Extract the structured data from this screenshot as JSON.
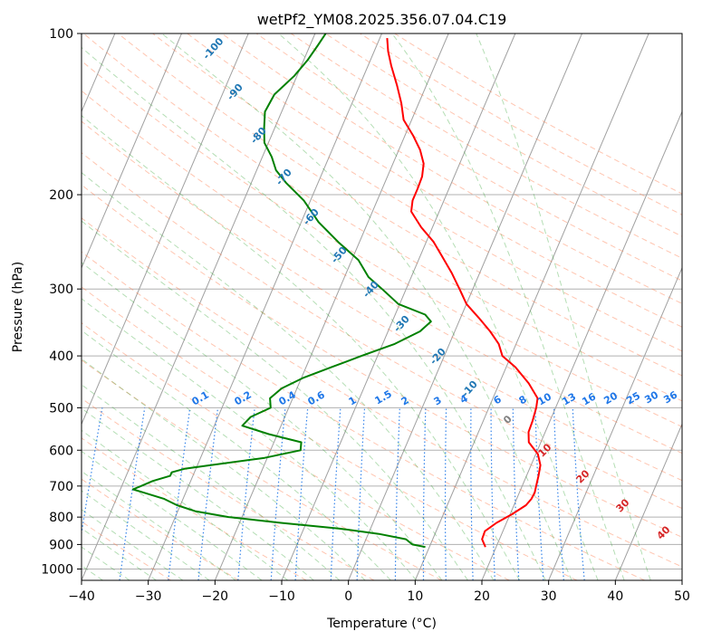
{
  "chart_data": {
    "type": "skew-t",
    "title": "wetPf2_YM08.2025.356.07.04.C19",
    "xlabel": "Temperature (°C)",
    "ylabel": "Pressure (hPa)",
    "xlim": [
      -40,
      50
    ],
    "ylim": [
      1050,
      100
    ],
    "x_ticks": [
      "−40",
      "−30",
      "−20",
      "−10",
      "0",
      "10",
      "20",
      "30",
      "40",
      "50"
    ],
    "x_tick_values": [
      -40,
      -30,
      -20,
      -10,
      0,
      10,
      20,
      30,
      40,
      50
    ],
    "y_ticks": [
      "100",
      "200",
      "300",
      "400",
      "500",
      "600",
      "700",
      "800",
      "900",
      "1000"
    ],
    "y_tick_values": [
      100,
      200,
      300,
      400,
      500,
      600,
      700,
      800,
      900,
      1000
    ],
    "grid": true,
    "colors": {
      "temperature": "#ff0000",
      "dewpoint": "#008000",
      "dry_adiabat": "#ff7f50",
      "moist_adiabat": "#2ca02c",
      "mixing_ratio": "#1f77e8",
      "isotherm": "#808080",
      "isobar": "#b0b0b0",
      "label_blue": "#1f77b4",
      "label_red": "#d62728"
    },
    "series": [
      {
        "name": "Temperature",
        "color": "#ff0000",
        "points": [
          [
            910,
            18.4
          ],
          [
            880,
            17.4
          ],
          [
            850,
            17.3
          ],
          [
            820,
            18.5
          ],
          [
            790,
            20.3
          ],
          [
            760,
            21.8
          ],
          [
            740,
            22.2
          ],
          [
            720,
            22.3
          ],
          [
            700,
            22.1
          ],
          [
            670,
            21.8
          ],
          [
            640,
            21.4
          ],
          [
            610,
            20.3
          ],
          [
            580,
            18.2
          ],
          [
            555,
            17.5
          ],
          [
            530,
            17.4
          ],
          [
            500,
            17.1
          ],
          [
            480,
            16.7
          ],
          [
            450,
            14.4
          ],
          [
            420,
            11.4
          ],
          [
            400,
            8.7
          ],
          [
            380,
            7.4
          ],
          [
            360,
            5.3
          ],
          [
            340,
            2.8
          ],
          [
            320,
            0.0
          ],
          [
            300,
            -2.0
          ],
          [
            280,
            -4.2
          ],
          [
            260,
            -6.8
          ],
          [
            245,
            -8.9
          ],
          [
            230,
            -11.7
          ],
          [
            215,
            -14.2
          ],
          [
            205,
            -14.7
          ],
          [
            195,
            -14.7
          ],
          [
            185,
            -14.8
          ],
          [
            175,
            -15.4
          ],
          [
            165,
            -16.8
          ],
          [
            155,
            -18.8
          ],
          [
            145,
            -21.2
          ],
          [
            135,
            -22.6
          ],
          [
            125,
            -24.4
          ],
          [
            115,
            -26.5
          ],
          [
            108,
            -27.9
          ],
          [
            102,
            -28.9
          ]
        ]
      },
      {
        "name": "Dewpoint",
        "color": "#008000",
        "points": [
          [
            910,
            9.4
          ],
          [
            900,
            7.3
          ],
          [
            880,
            6.0
          ],
          [
            860,
            1.6
          ],
          [
            840,
            -4.8
          ],
          [
            820,
            -13.8
          ],
          [
            800,
            -22.0
          ],
          [
            780,
            -27.4
          ],
          [
            760,
            -30.5
          ],
          [
            740,
            -32.8
          ],
          [
            720,
            -36.3
          ],
          [
            710,
            -38.1
          ],
          [
            700,
            -37.1
          ],
          [
            685,
            -35.7
          ],
          [
            670,
            -33.4
          ],
          [
            660,
            -33.4
          ],
          [
            650,
            -31.7
          ],
          [
            640,
            -28.0
          ],
          [
            620,
            -20.4
          ],
          [
            600,
            -15.5
          ],
          [
            580,
            -15.9
          ],
          [
            560,
            -21.3
          ],
          [
            540,
            -25.8
          ],
          [
            520,
            -25.1
          ],
          [
            500,
            -22.7
          ],
          [
            480,
            -23.4
          ],
          [
            460,
            -22.3
          ],
          [
            440,
            -19.8
          ],
          [
            420,
            -16.2
          ],
          [
            400,
            -12.4
          ],
          [
            380,
            -8.2
          ],
          [
            360,
            -5.2
          ],
          [
            345,
            -4.2
          ],
          [
            335,
            -5.5
          ],
          [
            320,
            -10.2
          ],
          [
            300,
            -13.6
          ],
          [
            285,
            -16.4
          ],
          [
            265,
            -19.0
          ],
          [
            245,
            -23.2
          ],
          [
            225,
            -27.4
          ],
          [
            205,
            -31.0
          ],
          [
            190,
            -34.8
          ],
          [
            180,
            -37.1
          ],
          [
            170,
            -38.6
          ],
          [
            160,
            -40.6
          ],
          [
            150,
            -41.6
          ],
          [
            140,
            -42.5
          ],
          [
            130,
            -42.2
          ],
          [
            120,
            -40.4
          ],
          [
            112,
            -39.4
          ],
          [
            105,
            -38.8
          ],
          [
            100,
            -38.4
          ]
        ]
      }
    ],
    "annotations": {
      "dry_adiabat_labels": [
        "-100",
        "-90",
        "-80",
        "-70",
        "-60",
        "-50",
        "-40",
        "-30",
        "-20",
        "-10"
      ],
      "mixing_ratio_labels": [
        "0.1",
        "0.2",
        "0.4",
        "0.6",
        "1",
        "1.5",
        "2",
        "3",
        "4",
        "6",
        "8",
        "10",
        "13",
        "16",
        "20",
        "25",
        "30",
        "36"
      ],
      "moist_adiabat_labels": [
        "0",
        "10",
        "20",
        "30",
        "40"
      ]
    }
  }
}
